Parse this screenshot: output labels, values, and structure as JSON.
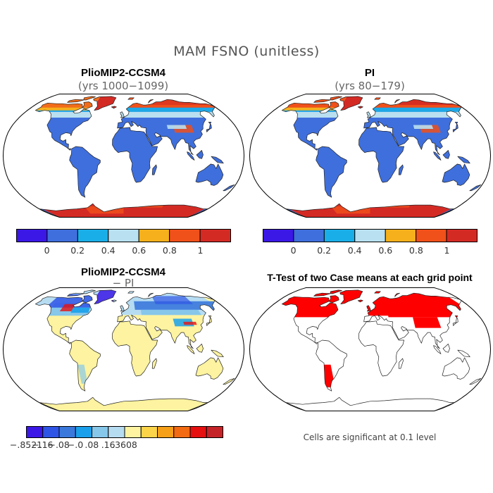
{
  "title": "MAM FSNO (unitless)",
  "panels": {
    "top_left": {
      "title": "PlioMIP2-CCSM4",
      "subtitle": "(yrs 1000−1099)"
    },
    "top_right": {
      "title": "PI",
      "subtitle": "(yrs 80−179)"
    },
    "bottom_left": {
      "title": "PlioMIP2-CCSM4",
      "subtitle": "− PI"
    },
    "bottom_right": {
      "title": "T-Test of two Case means at each grid point",
      "note": "Cells are significant at 0.1 level"
    }
  },
  "colorbar_abs": {
    "colors": [
      "#3b18e6",
      "#3f6fdc",
      "#1aaee8",
      "#b9e0f0",
      "#f5b01c",
      "#f0501a",
      "#d42a24"
    ],
    "labels": [
      "0",
      "0.2",
      "0.4",
      "0.6",
      "0.8",
      "1"
    ]
  },
  "colorbar_diff": {
    "colors": [
      "#3b18e6",
      "#2f55e6",
      "#3a78dc",
      "#1aa0ea",
      "#86c7ea",
      "#b6dcf2",
      "#fdf3a0",
      "#fbd44a",
      "#f5a018",
      "#f26a12",
      "#e61010",
      "#c42428"
    ],
    "labels": [
      "−.8521",
      "−.16",
      "−.08",
      "−.0",
      ".08",
      ".16",
      ".3608"
    ]
  },
  "map_colors": {
    "land_low": "#3f6fdc",
    "diff_land": "#fdf3a0",
    "significant": "#ff0000"
  }
}
